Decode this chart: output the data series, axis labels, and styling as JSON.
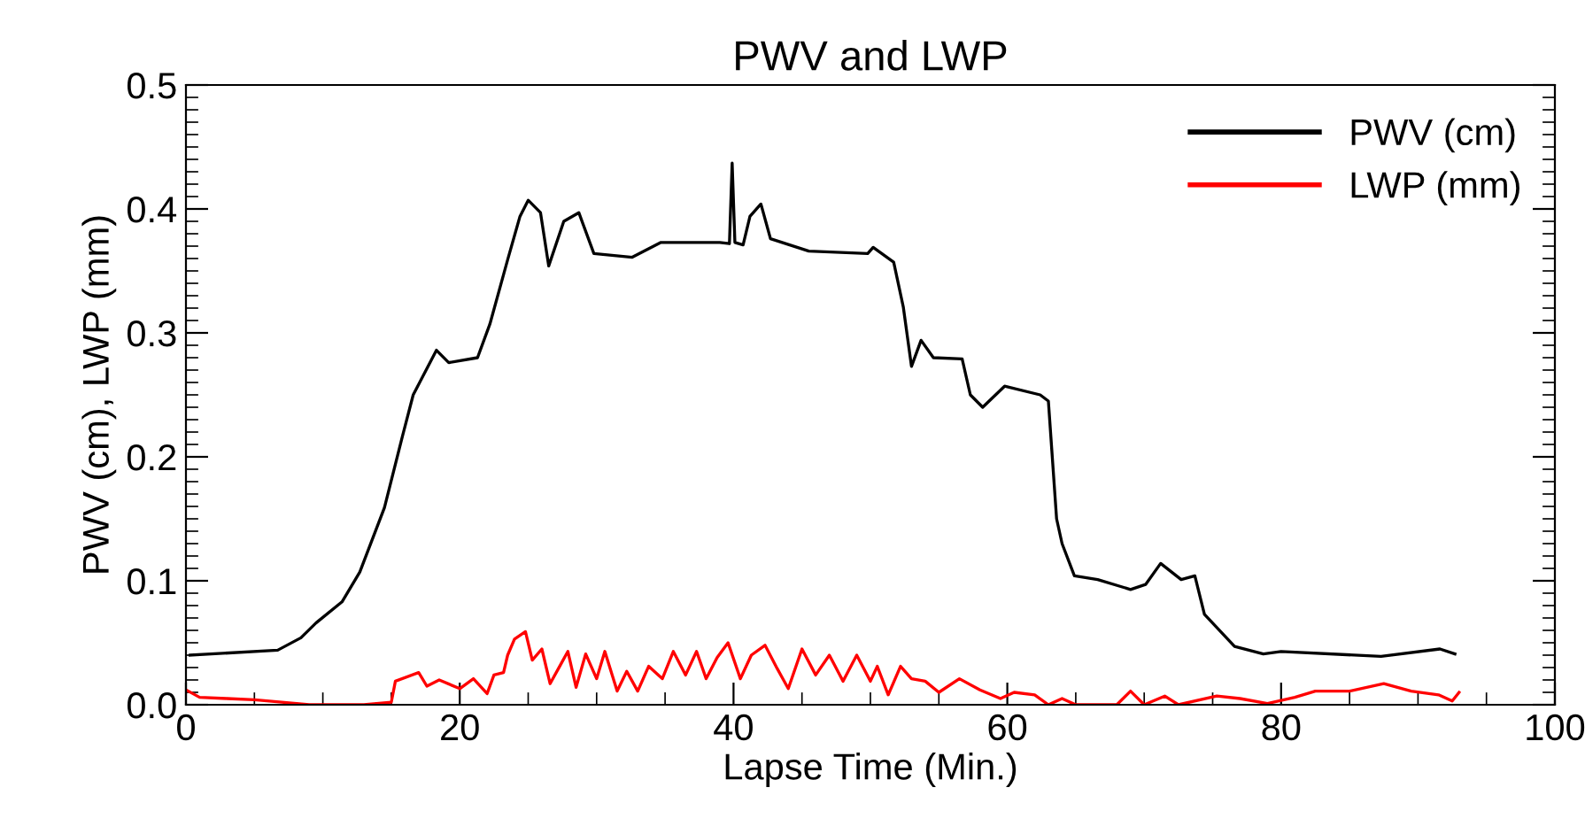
{
  "chart_data": {
    "type": "line",
    "title": "PWV and LWP",
    "xlabel": "Lapse Time (Min.)",
    "ylabel": "PWV (cm), LWP (mm)",
    "xlim": [
      0,
      100
    ],
    "xticks": [
      0,
      20,
      40,
      60,
      80,
      100
    ],
    "ylim": [
      0,
      0.5
    ],
    "yticks": [
      {
        "value": 0,
        "label": "0.0"
      },
      0.1,
      0.2,
      0.3,
      0.4,
      0.5
    ],
    "grid": false,
    "legend": "top right",
    "series": [
      {
        "name": "PWV (cm)",
        "color": "#000000",
        "x": [
          0.3,
          6.7,
          8.4,
          9.5,
          11.4,
          12.7,
          14.5,
          15.8,
          16.6,
          18.3,
          19.2,
          21.3,
          22.2,
          23.5,
          24.4,
          25.0,
          25.9,
          26.5,
          27.6,
          28.7,
          29.8,
          32.6,
          34.7,
          39.0,
          39.7,
          39.9,
          40.1,
          40.7,
          41.2,
          42.0,
          42.7,
          45.5,
          49.8,
          50.2,
          51.7,
          52.4,
          53.0,
          53.7,
          54.6,
          56.7,
          57.3,
          58.2,
          59.8,
          62.4,
          63.0,
          63.6,
          64.0,
          64.9,
          66.6,
          69.0,
          70.1,
          71.2,
          72.7,
          73.7,
          74.4,
          76.6,
          78.7,
          80.0,
          87.3,
          91.6,
          92.7
        ],
        "values": [
          0.04,
          0.044,
          0.054,
          0.066,
          0.083,
          0.107,
          0.159,
          0.216,
          0.25,
          0.286,
          0.276,
          0.28,
          0.307,
          0.359,
          0.394,
          0.407,
          0.397,
          0.354,
          0.39,
          0.397,
          0.364,
          0.361,
          0.373,
          0.373,
          0.372,
          0.437,
          0.373,
          0.371,
          0.394,
          0.404,
          0.376,
          0.366,
          0.364,
          0.369,
          0.357,
          0.321,
          0.273,
          0.294,
          0.28,
          0.279,
          0.25,
          0.24,
          0.257,
          0.25,
          0.245,
          0.15,
          0.13,
          0.104,
          0.101,
          0.093,
          0.097,
          0.114,
          0.101,
          0.104,
          0.073,
          0.047,
          0.041,
          0.043,
          0.039,
          0.045,
          0.041
        ]
      },
      {
        "name": "LWP (mm)",
        "color": "#ff0000",
        "x": [
          0,
          1,
          3,
          5,
          7,
          9,
          13,
          15,
          15.3,
          17.0,
          17.6,
          18.5,
          20,
          21.0,
          22,
          22.5,
          23.2,
          23.5,
          24.0,
          24.8,
          25.3,
          26.0,
          26.6,
          27.3,
          27.9,
          28.5,
          29.2,
          30.0,
          30.6,
          31.5,
          32.2,
          33.0,
          33.8,
          34.8,
          35.6,
          36.5,
          37.3,
          38.0,
          38.8,
          39.6,
          40.5,
          41.3,
          42.3,
          43.2,
          44.0,
          45.0,
          46.0,
          47.0,
          48.0,
          49.0,
          50.0,
          50.5,
          51.3,
          52.2,
          53.0,
          54.0,
          55.0,
          56.5,
          58.0,
          59.5,
          60.5,
          62.0,
          63.0,
          64.0,
          65,
          68,
          69.0,
          70.0,
          71.5,
          72.5,
          75.3,
          77,
          79,
          81,
          82.5,
          85,
          87.5,
          89.5,
          91.5,
          92.5,
          93.0
        ],
        "values": [
          0.012,
          0.006,
          0.005,
          0.004,
          0.002,
          0.0,
          0.0,
          0.002,
          0.019,
          0.026,
          0.015,
          0.02,
          0.013,
          0.021,
          0.009,
          0.024,
          0.026,
          0.04,
          0.053,
          0.059,
          0.036,
          0.045,
          0.017,
          0.031,
          0.043,
          0.014,
          0.041,
          0.021,
          0.043,
          0.011,
          0.027,
          0.011,
          0.031,
          0.021,
          0.043,
          0.024,
          0.043,
          0.021,
          0.038,
          0.05,
          0.021,
          0.04,
          0.048,
          0.029,
          0.013,
          0.045,
          0.024,
          0.04,
          0.019,
          0.04,
          0.019,
          0.031,
          0.008,
          0.031,
          0.021,
          0.019,
          0.01,
          0.021,
          0.012,
          0.005,
          0.01,
          0.008,
          0.0,
          0.005,
          0.0,
          0.0,
          0.011,
          0.0,
          0.007,
          0.0,
          0.007,
          0.005,
          0.001,
          0.006,
          0.011,
          0.011,
          0.017,
          0.011,
          0.008,
          0.003,
          0.01
        ]
      }
    ]
  }
}
